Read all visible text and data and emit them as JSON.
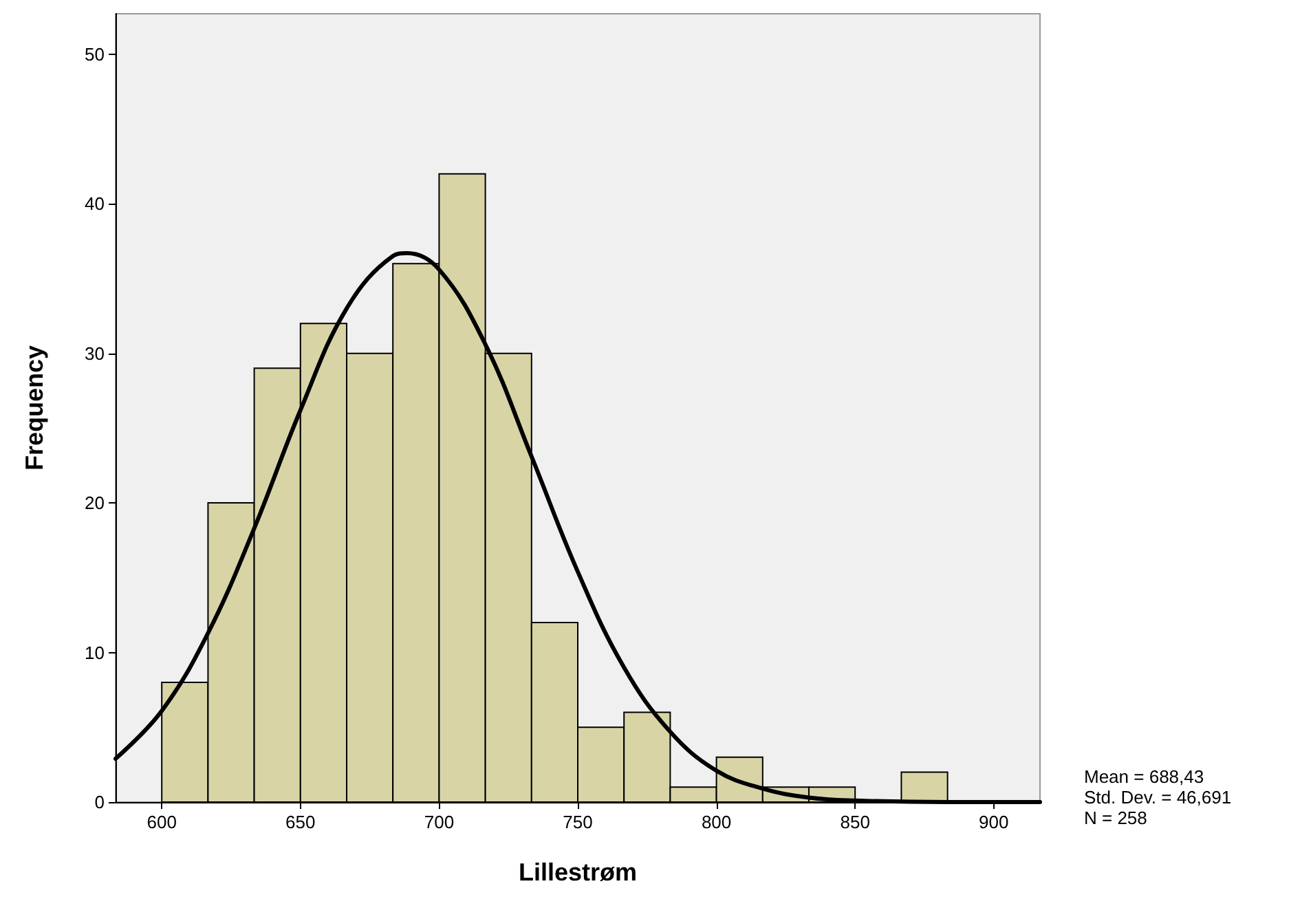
{
  "chart_data": {
    "type": "histogram",
    "xlabel": "Lillestrøm",
    "ylabel": "Frequency",
    "bins": [
      600,
      616.67,
      633.33,
      650,
      666.67,
      683.33,
      700,
      716.67,
      733.33,
      750,
      766.67,
      783.33,
      800,
      816.67,
      833.33,
      850,
      866.67,
      883.33
    ],
    "values": [
      8,
      20,
      29,
      32,
      30,
      36,
      42,
      30,
      12,
      5,
      6,
      1,
      3,
      1,
      1,
      0,
      2
    ],
    "color": "#d8d4a6",
    "series": [
      {
        "type": "line",
        "color": "#000000",
        "x": [
          583.33,
          600,
          616.67,
          633.33,
          650,
          666.67,
          683.33,
          688.43,
          700,
          716.67,
          733.33,
          750,
          766.67,
          783.33,
          800,
          816.67,
          833.33,
          850,
          883.33,
          916.67
        ],
        "values": [
          2.9,
          6.1,
          11.3,
          18.3,
          26.2,
          33,
          36.5,
          36.7,
          35.6,
          30.6,
          23.1,
          15.4,
          9,
          4.7,
          2.1,
          0.9,
          0.3,
          0.1,
          0,
          0
        ]
      }
    ],
    "xlim": [
      583.33,
      916.67
    ],
    "xticks": [
      600,
      650,
      700,
      750,
      800,
      850,
      900
    ],
    "ylim": [
      0,
      52.7
    ],
    "yticks": [
      0,
      10,
      20,
      30,
      40,
      50
    ],
    "grid": false,
    "marker": "none",
    "line_style": "solid",
    "annotations": [
      "Mean = 688,43",
      "Std. Dev. = 46,691",
      "N = 258"
    ]
  }
}
